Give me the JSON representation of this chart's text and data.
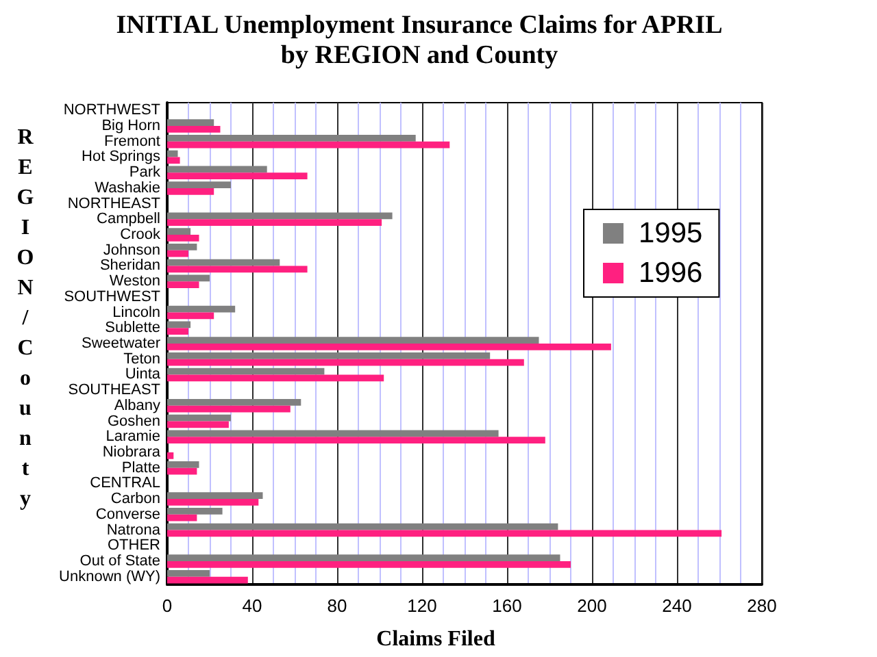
{
  "chart_data": {
    "type": "bar",
    "orientation": "horizontal",
    "title": "INITIAL Unemployment Insurance Claims for APRIL",
    "subtitle": "by REGION and County",
    "xlabel": "Claims Filed",
    "ylabel": "REGION/County",
    "categories": [
      "NORTHWEST",
      "Big Horn",
      "Fremont",
      "Hot Springs",
      "Park",
      "Washakie",
      "NORTHEAST",
      "Campbell",
      "Crook",
      "Johnson",
      "Sheridan",
      "Weston",
      "SOUTHWEST",
      "Lincoln",
      "Sublette",
      "Sweetwater",
      "Teton",
      "Uinta",
      "SOUTHEAST",
      "Albany",
      "Goshen",
      "Laramie",
      "Niobrara",
      "Platte",
      "CENTRAL",
      "Carbon",
      "Converse",
      "Natrona",
      "OTHER",
      "Out of State",
      "Unknown (WY)"
    ],
    "series": [
      {
        "name": "1995",
        "color": "#808080",
        "values": [
          null,
          22,
          117,
          5,
          47,
          30,
          null,
          106,
          11,
          14,
          53,
          20,
          null,
          32,
          11,
          175,
          152,
          74,
          null,
          63,
          30,
          156,
          0,
          15,
          null,
          45,
          26,
          184,
          null,
          185,
          20
        ]
      },
      {
        "name": "1996",
        "color": "#ff2080",
        "values": [
          null,
          25,
          133,
          6,
          66,
          22,
          null,
          101,
          15,
          10,
          66,
          15,
          null,
          22,
          10,
          209,
          168,
          102,
          null,
          58,
          29,
          178,
          3,
          14,
          null,
          43,
          14,
          261,
          null,
          190,
          38
        ]
      }
    ],
    "xlim": [
      0,
      280
    ],
    "xticks": [
      0,
      {
        "value": 10,
        "label": null
      },
      {
        "value": 20,
        "label": null
      },
      {
        "value": 30,
        "label": null
      },
      40,
      {
        "value": 50,
        "label": null
      },
      {
        "value": 60,
        "label": null
      },
      {
        "value": 70,
        "label": null
      },
      80,
      {
        "value": 90,
        "label": null
      },
      {
        "value": 100,
        "label": null
      },
      {
        "value": 110,
        "label": null
      },
      120,
      {
        "value": 130,
        "label": null
      },
      {
        "value": 140,
        "label": null
      },
      {
        "value": 150,
        "label": null
      },
      160,
      {
        "value": 170,
        "label": null
      },
      {
        "value": 180,
        "label": null
      },
      {
        "value": 190,
        "label": null
      },
      200,
      {
        "value": 210,
        "label": null
      },
      {
        "value": 220,
        "label": null
      },
      {
        "value": 230,
        "label": null
      },
      240,
      {
        "value": 250,
        "label": null
      },
      {
        "value": 260,
        "label": null
      },
      {
        "value": 270,
        "label": null
      },
      280
    ],
    "grid": "x",
    "legend": "right"
  }
}
